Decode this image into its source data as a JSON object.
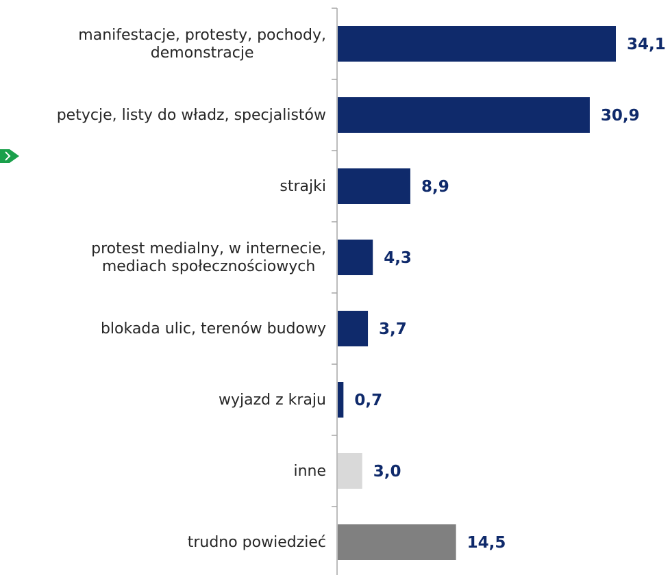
{
  "colors": {
    "main": "#0f2a6b",
    "other": "#d9d9d9",
    "dont_know": "#808080",
    "axis": "#a6a6a6",
    "value_text": "#0f2a6b",
    "label_text": "#262626",
    "marker": "#1aa04b"
  },
  "marker_icon": "green-arrow-icon",
  "chart_data": {
    "type": "bar",
    "orientation": "horizontal",
    "categories": [
      "manifestacje, protesty, pochody,\ndemonstracje",
      "petycje, listy do władz, specjalistów",
      "strajki",
      "protest medialny, w internecie,\nmediach społecznościowych",
      "blokada ulic, terenów budowy",
      "wyjazd z kraju",
      "inne",
      "trudno powiedzieć"
    ],
    "values": [
      34.1,
      30.9,
      8.9,
      4.3,
      3.7,
      0.7,
      3.0,
      14.5
    ],
    "value_labels": [
      "34,1",
      "30,9",
      "8,9",
      "4,3",
      "3,7",
      "0,7",
      "3,0",
      "14,5"
    ],
    "bar_colors": [
      "main",
      "main",
      "main",
      "main",
      "main",
      "main",
      "other",
      "dont_know"
    ],
    "xlim": [
      0,
      34.1
    ],
    "grid": false,
    "title": "",
    "xlabel": "",
    "ylabel": ""
  }
}
